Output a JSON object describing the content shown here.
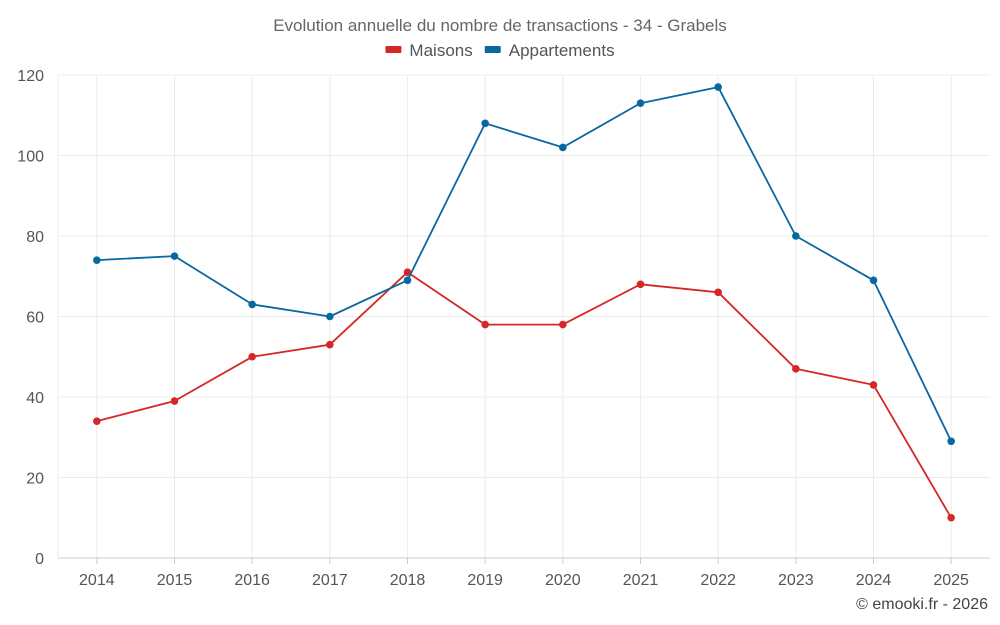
{
  "chart_data": {
    "type": "line",
    "title": "Evolution annuelle du nombre de transactions - 34 - Grabels",
    "xlabel": "",
    "ylabel": "",
    "categories": [
      "2014",
      "2015",
      "2016",
      "2017",
      "2018",
      "2019",
      "2020",
      "2021",
      "2022",
      "2023",
      "2024",
      "2025"
    ],
    "ylim": [
      0,
      120
    ],
    "yticks": [
      0,
      20,
      40,
      60,
      80,
      100,
      120
    ],
    "grid": true,
    "legend_position": "top-center",
    "series": [
      {
        "name": "Maisons",
        "color": "#d62728",
        "values": [
          34,
          39,
          50,
          53,
          71,
          58,
          58,
          68,
          66,
          47,
          43,
          10
        ]
      },
      {
        "name": "Appartements",
        "color": "#0868a0",
        "values": [
          74,
          75,
          63,
          60,
          69,
          108,
          102,
          113,
          117,
          80,
          69,
          29
        ]
      }
    ]
  },
  "credit": "© emooki.fr - 2026"
}
